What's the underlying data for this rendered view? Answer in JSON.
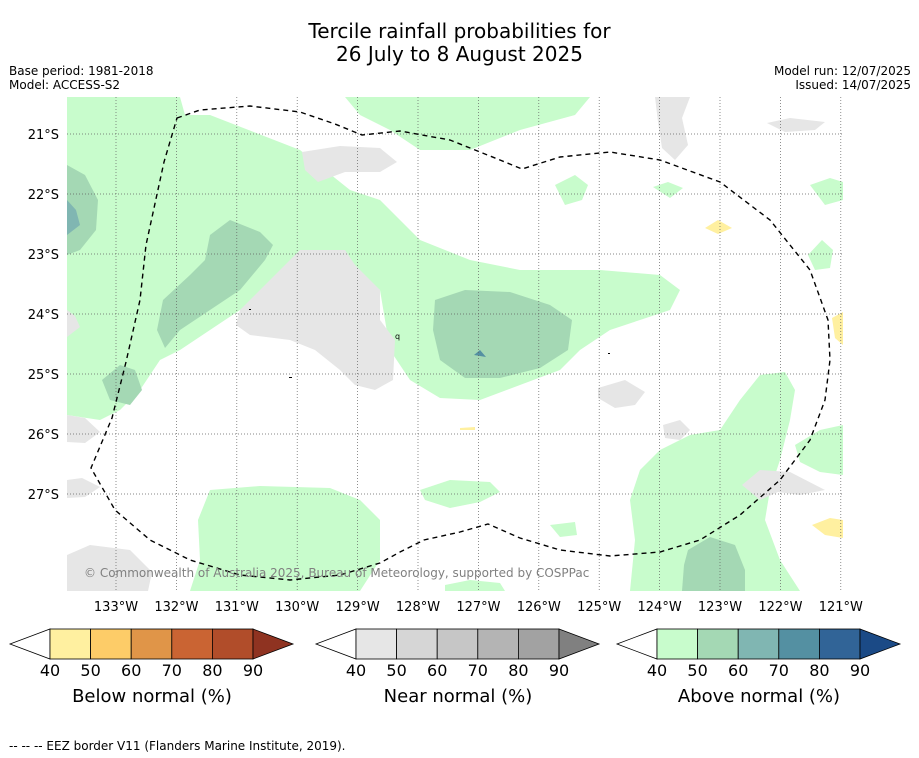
{
  "title": {
    "line1": "Tercile rainfall probabilities for",
    "line2": "26 July to 8 August 2025"
  },
  "meta_left": {
    "base_period": "Base period: 1981-2018",
    "model": "Model: ACCESS-S2"
  },
  "meta_right": {
    "model_run": "Model run: 12/07/2025",
    "issued": "Issued: 14/07/2025"
  },
  "map": {
    "lat_labels": [
      "21°S",
      "22°S",
      "23°S",
      "24°S",
      "25°S",
      "26°S",
      "27°S"
    ],
    "lon_labels": [
      "133°W",
      "132°W",
      "131°W",
      "130°W",
      "129°W",
      "128°W",
      "127°W",
      "126°W",
      "125°W",
      "124°W",
      "123°W",
      "122°W",
      "121°W"
    ],
    "copyright": "© Commonwealth of Australia 2025, Bureau of Meteorology, supported by COSPPac",
    "eez_marker": "q"
  },
  "colorbars": [
    {
      "name": "below",
      "label": "Below normal (%)",
      "ticks": [
        "40",
        "50",
        "60",
        "70",
        "80",
        "90"
      ],
      "colors": [
        "#fff0a0",
        "#fdcc68",
        "#e09548",
        "#ca6433",
        "#b14d2a",
        "#8f3321"
      ]
    },
    {
      "name": "near",
      "label": "Near normal (%)",
      "ticks": [
        "40",
        "50",
        "60",
        "70",
        "80",
        "90"
      ],
      "colors": [
        "#e6e6e6",
        "#d6d6d6",
        "#c6c6c6",
        "#b4b4b4",
        "#a2a2a2",
        "#808080"
      ]
    },
    {
      "name": "above",
      "label": "Above normal (%)",
      "ticks": [
        "40",
        "50",
        "60",
        "70",
        "80",
        "90"
      ],
      "colors": [
        "#c8fccc",
        "#a4d8b4",
        "#80b6b2",
        "#5490a2",
        "#316497",
        "#1b4a86"
      ]
    }
  ],
  "footer": "--  --  -- EEZ border V11 (Flanders Marine Institute, 2019)."
}
